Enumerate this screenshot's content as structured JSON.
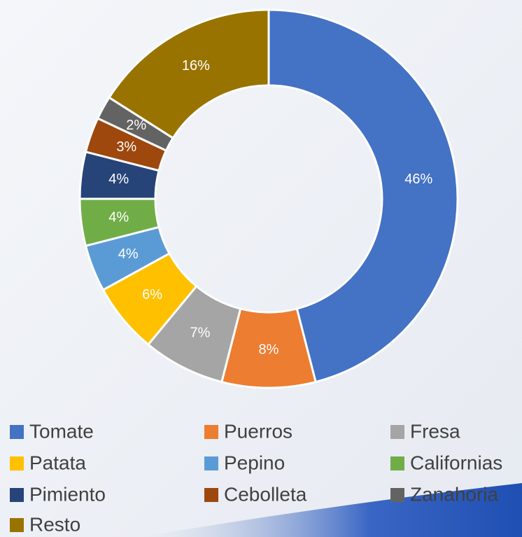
{
  "chart_data": {
    "type": "donut",
    "categories": [
      "Tomate",
      "Puerros",
      "Fresa",
      "Patata",
      "Pepino",
      "Californias",
      "Pimiento",
      "Cebolleta",
      "Zanahoria",
      "Resto"
    ],
    "values": [
      46,
      8,
      7,
      6,
      4,
      4,
      4,
      3,
      2,
      16
    ],
    "value_labels": [
      "46%",
      "8%",
      "7%",
      "6%",
      "4%",
      "4%",
      "4%",
      "3%",
      "2%",
      "16%"
    ],
    "colors": [
      "#4472c4",
      "#ed7d31",
      "#a5a5a5",
      "#ffc000",
      "#5b9bd5",
      "#70ad47",
      "#264478",
      "#9e480e",
      "#636363",
      "#997300"
    ],
    "legend": "bottom"
  }
}
